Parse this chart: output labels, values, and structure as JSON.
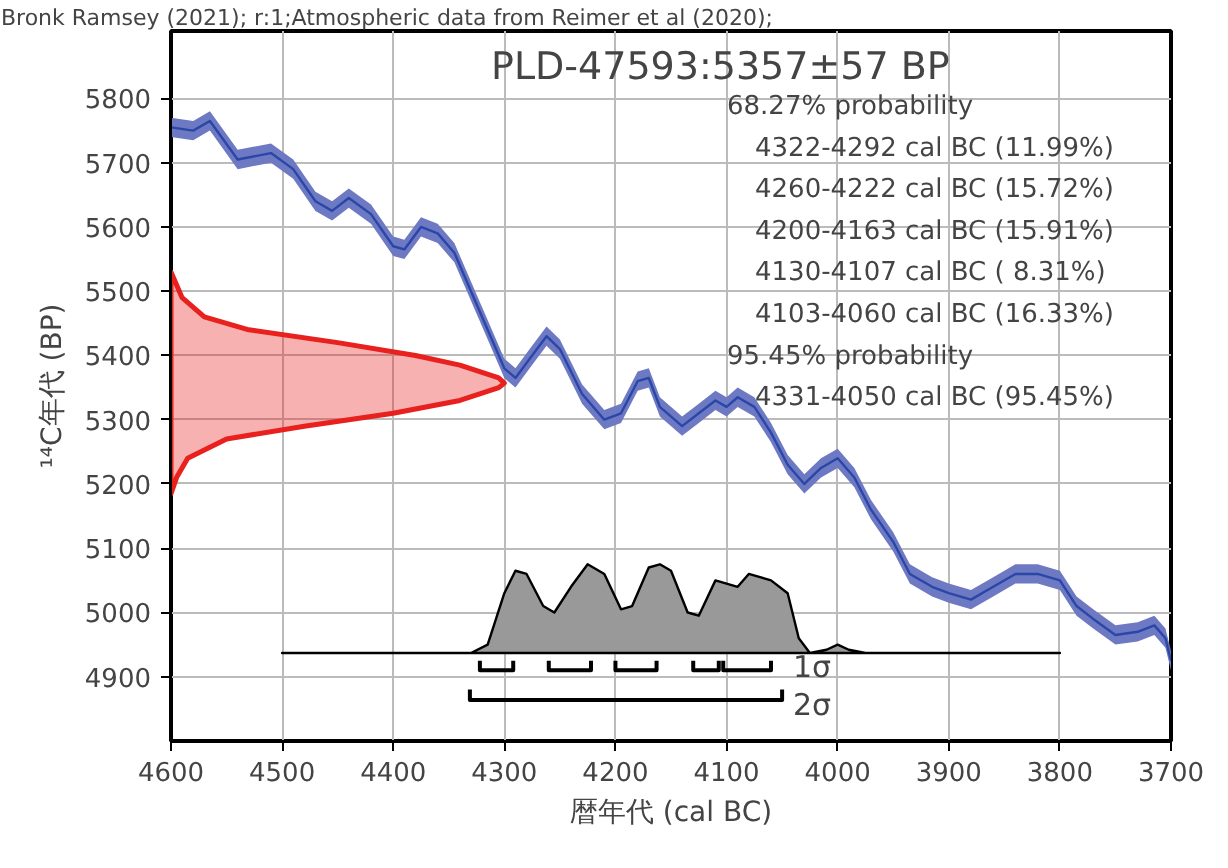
{
  "chart_data": {
    "type": "line",
    "title": "PLD-47593:5357±57 BP",
    "xlabel": "暦年代 (cal BC)",
    "ylabel": "¹⁴C年代 (BP)",
    "annotations": [
      "Bronk Ramsey (2021); r:1;Atmospheric data from Reimer et al (2020);",
      "68.27% probability",
      "4322-4292 cal BC (11.99%)",
      "4260-4222 cal BC (15.72%)",
      "4200-4163 cal BC (15.91%)",
      "4130-4107 cal BC ( 8.31%)",
      "4103-4060 cal BC (16.33%)",
      "95.45% probability",
      "4331-4050 cal BC (95.45%)",
      "1σ",
      "2σ"
    ],
    "xlim": [
      4600,
      3700
    ],
    "xticks": [
      4600,
      4500,
      4400,
      4300,
      4200,
      4100,
      4000,
      3900,
      3800,
      3700
    ],
    "ylim": [
      4800,
      5905
    ],
    "yticks": [
      4900,
      5000,
      5100,
      5200,
      5300,
      5400,
      5500,
      5600,
      5700,
      5800
    ],
    "grid": true,
    "marker": "none",
    "line_style": "solid",
    "series": [
      {
        "color": "#2a47a8",
        "x": [
          4600,
          4580,
          4565,
          4540,
          4510,
          4490,
          4470,
          4455,
          4440,
          4420,
          4400,
          4390,
          4375,
          4360,
          4345,
          4320,
          4300,
          4290,
          4275,
          4262,
          4250,
          4230,
          4210,
          4195,
          4180,
          4170,
          4160,
          4140,
          4125,
          4110,
          4100,
          4090,
          4075,
          4060,
          4045,
          4030,
          4015,
          4000,
          3985,
          3970,
          3950,
          3935,
          3915,
          3900,
          3880,
          3860,
          3840,
          3820,
          3800,
          3785,
          3770,
          3750,
          3730,
          3715,
          3705,
          3700
        ],
        "values": [
          5755,
          5750,
          5765,
          5705,
          5715,
          5690,
          5640,
          5625,
          5645,
          5620,
          5570,
          5565,
          5600,
          5590,
          5560,
          5460,
          5380,
          5365,
          5400,
          5430,
          5410,
          5340,
          5300,
          5310,
          5360,
          5365,
          5320,
          5290,
          5310,
          5330,
          5320,
          5335,
          5320,
          5280,
          5230,
          5200,
          5225,
          5240,
          5210,
          5160,
          5110,
          5060,
          5040,
          5030,
          5020,
          5040,
          5060,
          5060,
          5050,
          5010,
          4990,
          4965,
          4970,
          4980,
          4960,
          4925
        ],
        "lower": [
          5740,
          5735,
          5750,
          5690,
          5700,
          5675,
          5625,
          5610,
          5630,
          5605,
          5555,
          5550,
          5585,
          5575,
          5545,
          5445,
          5365,
          5350,
          5385,
          5415,
          5395,
          5325,
          5285,
          5295,
          5345,
          5350,
          5305,
          5275,
          5295,
          5315,
          5305,
          5320,
          5305,
          5265,
          5215,
          5185,
          5210,
          5225,
          5195,
          5145,
          5095,
          5045,
          5025,
          5015,
          5005,
          5025,
          5045,
          5045,
          5035,
          4995,
          4975,
          4950,
          4955,
          4965,
          4945,
          4910
        ],
        "upper": [
          5770,
          5765,
          5780,
          5720,
          5730,
          5705,
          5655,
          5640,
          5660,
          5635,
          5585,
          5580,
          5615,
          5605,
          5575,
          5475,
          5395,
          5380,
          5415,
          5445,
          5425,
          5355,
          5315,
          5325,
          5375,
          5380,
          5335,
          5305,
          5325,
          5345,
          5335,
          5350,
          5335,
          5295,
          5245,
          5215,
          5240,
          5255,
          5225,
          5175,
          5125,
          5075,
          5055,
          5045,
          5035,
          5055,
          5075,
          5075,
          5065,
          5025,
          5005,
          4980,
          4985,
          4995,
          4975,
          4940
        ]
      },
      {
        "type": "area",
        "color": "#e8201e",
        "x": [
          4600,
          4590,
          4570,
          4530,
          4450,
          4380,
          4340,
          4305,
          4300,
          4305,
          4340,
          4400,
          4480,
          4550,
          4585,
          4595,
          4600
        ],
        "values": [
          5530,
          5490,
          5460,
          5440,
          5420,
          5400,
          5385,
          5365,
          5357,
          5350,
          5330,
          5310,
          5290,
          5270,
          5240,
          5210,
          5185
        ]
      },
      {
        "type": "area",
        "color": "#999999",
        "x": [
          4500,
          4330,
          4315,
          4300,
          4290,
          4280,
          4265,
          4255,
          4240,
          4225,
          4210,
          4195,
          4185,
          4170,
          4160,
          4150,
          4135,
          4125,
          4110,
          4100,
          4090,
          4080,
          4060,
          4045,
          4035,
          4025,
          4010,
          4000,
          3990,
          3975,
          3800
        ],
        "values": [
          4937,
          4937,
          4950,
          5030,
          5065,
          5060,
          5010,
          5000,
          5040,
          5075,
          5060,
          5005,
          5010,
          5070,
          5075,
          5065,
          5000,
          4995,
          5050,
          5045,
          5040,
          5060,
          5050,
          5030,
          4960,
          4937,
          4942,
          4950,
          4942,
          4937,
          4937
        ]
      },
      {
        "color": "#000000",
        "x": [
          4322,
          4322,
          4292,
          4292,
          null,
          4260,
          4260,
          4222,
          4222,
          null,
          4200,
          4200,
          4163,
          4163,
          null,
          4130,
          4130,
          4107,
          4107,
          null,
          4103,
          4103,
          4060,
          4060
        ],
        "values": [
          4925,
          4910,
          4910,
          4925,
          null,
          4925,
          4910,
          4910,
          4925,
          null,
          4925,
          4910,
          4910,
          4925,
          null,
          4925,
          4910,
          4910,
          4925,
          null,
          4925,
          4910,
          4910,
          4925
        ]
      },
      {
        "color": "#000000",
        "x": [
          4331,
          4331,
          4050,
          4050
        ],
        "values": [
          4880,
          4864,
          4864,
          4880
        ]
      }
    ]
  }
}
